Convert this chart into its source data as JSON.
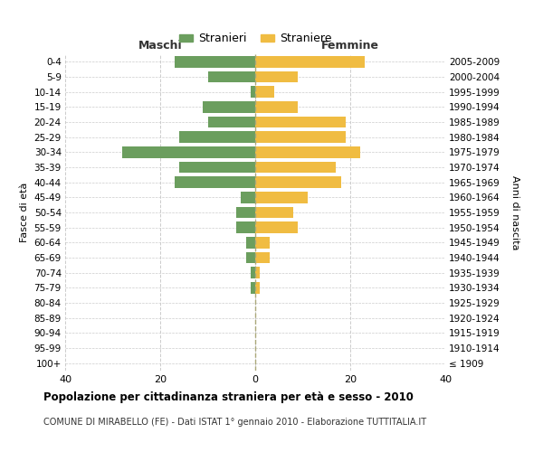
{
  "age_groups": [
    "100+",
    "95-99",
    "90-94",
    "85-89",
    "80-84",
    "75-79",
    "70-74",
    "65-69",
    "60-64",
    "55-59",
    "50-54",
    "45-49",
    "40-44",
    "35-39",
    "30-34",
    "25-29",
    "20-24",
    "15-19",
    "10-14",
    "5-9",
    "0-4"
  ],
  "birth_years": [
    "≤ 1909",
    "1910-1914",
    "1915-1919",
    "1920-1924",
    "1925-1929",
    "1930-1934",
    "1935-1939",
    "1940-1944",
    "1945-1949",
    "1950-1954",
    "1955-1959",
    "1960-1964",
    "1965-1969",
    "1970-1974",
    "1975-1979",
    "1980-1984",
    "1985-1989",
    "1990-1994",
    "1995-1999",
    "2000-2004",
    "2005-2009"
  ],
  "maschi": [
    0,
    0,
    0,
    0,
    0,
    1,
    1,
    2,
    2,
    4,
    4,
    3,
    17,
    16,
    28,
    16,
    10,
    11,
    1,
    10,
    17
  ],
  "femmine": [
    0,
    0,
    0,
    0,
    0,
    1,
    1,
    3,
    3,
    9,
    8,
    11,
    18,
    17,
    22,
    19,
    19,
    9,
    4,
    9,
    23
  ],
  "male_color": "#6b9e5e",
  "female_color": "#f0bc42",
  "title": "Popolazione per cittadinanza straniera per età e sesso - 2010",
  "subtitle": "COMUNE DI MIRABELLO (FE) - Dati ISTAT 1° gennaio 2010 - Elaborazione TUTTITALIA.IT",
  "xlabel_left": "Maschi",
  "xlabel_right": "Femmine",
  "ylabel_left": "Fasce di età",
  "ylabel_right": "Anni di nascita",
  "legend_male": "Stranieri",
  "legend_female": "Straniere",
  "xlim": 40,
  "background_color": "#ffffff",
  "grid_color": "#cccccc"
}
